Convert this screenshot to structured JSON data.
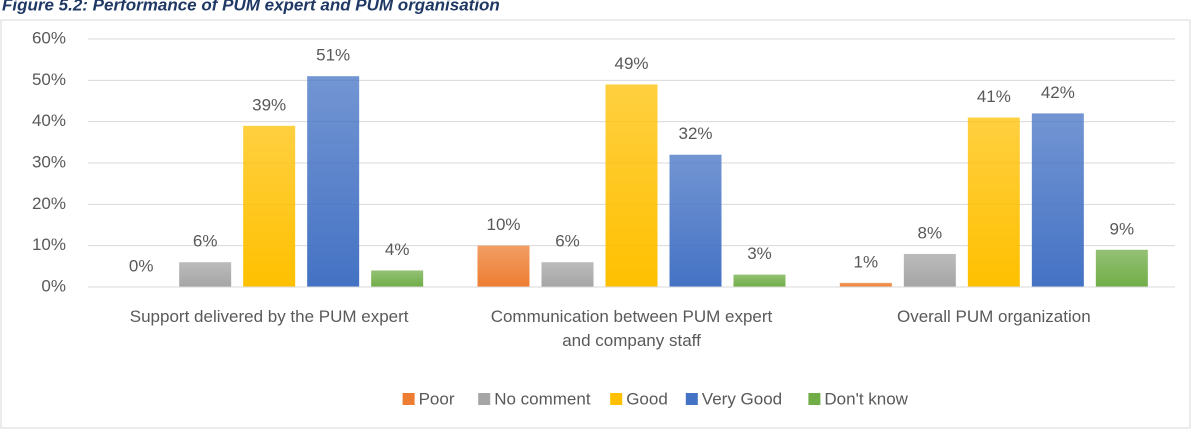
{
  "chart_data": {
    "type": "bar",
    "title": "Figure 5.2: Performance of PUM expert and PUM organisation",
    "categories": [
      "Support delivered by the PUM expert",
      "Communication between PUM expert and company staff",
      "Overall PUM organization"
    ],
    "series": [
      {
        "name": "Poor",
        "color": "#ed7d31",
        "values": [
          0,
          10,
          1
        ],
        "value_labels": [
          "0%",
          "10%",
          "1%"
        ]
      },
      {
        "name": "No comment",
        "color": "#a5a5a5",
        "values": [
          6,
          6,
          8
        ],
        "value_labels": [
          "6%",
          "6%",
          "8%"
        ]
      },
      {
        "name": "Good",
        "color": "#ffc000",
        "values": [
          39,
          49,
          41
        ],
        "value_labels": [
          "39%",
          "49%",
          "41%"
        ]
      },
      {
        "name": "Very Good",
        "color": "#4472c4",
        "values": [
          51,
          32,
          42
        ],
        "value_labels": [
          "51%",
          "32%",
          "42%"
        ]
      },
      {
        "name": "Don't know",
        "color": "#70ad47",
        "values": [
          4,
          3,
          9
        ],
        "value_labels": [
          "4%",
          "3%",
          "9%"
        ]
      }
    ],
    "ylim": [
      0,
      60
    ],
    "yticks": [
      {
        "value": 0,
        "label": "0%"
      },
      {
        "value": 10,
        "label": "10%"
      },
      {
        "value": 20,
        "label": "20%"
      },
      {
        "value": 30,
        "label": "30%"
      },
      {
        "value": 40,
        "label": "40%"
      },
      {
        "value": 50,
        "label": "50%"
      },
      {
        "value": 60,
        "label": "60%"
      }
    ],
    "grid": true,
    "legend": "bottom"
  }
}
